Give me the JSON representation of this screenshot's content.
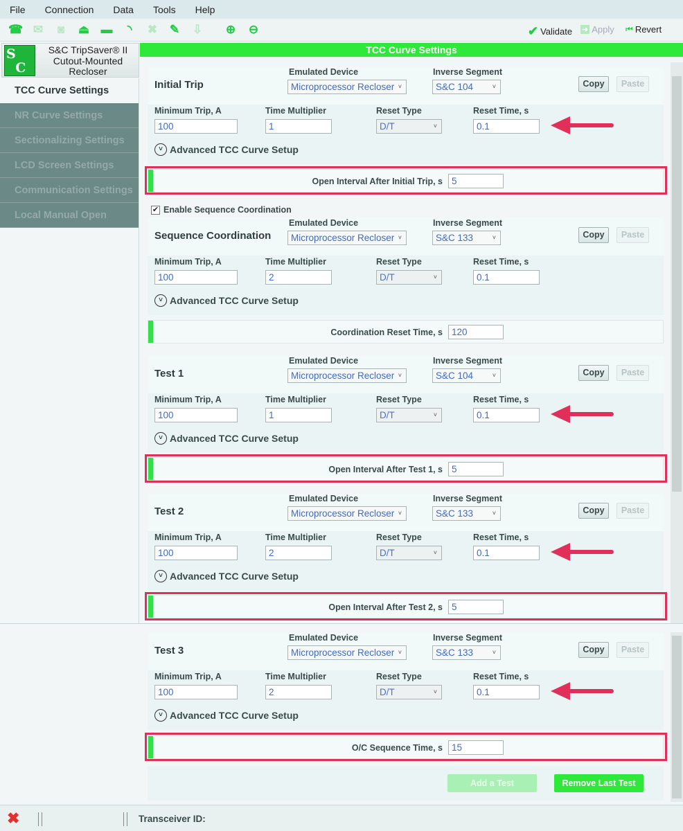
{
  "menu": [
    "File",
    "Connection",
    "Data",
    "Tools",
    "Help"
  ],
  "toolbar": {
    "icons": [
      {
        "name": "connect-icon",
        "glyph": "☎",
        "enabled": true
      },
      {
        "name": "email-icon",
        "glyph": "✉",
        "enabled": false
      },
      {
        "name": "camera-icon",
        "glyph": "◙",
        "enabled": false
      },
      {
        "name": "upload-icon",
        "glyph": "⏏",
        "enabled": true
      },
      {
        "name": "toolbox-icon",
        "glyph": "▬",
        "enabled": true
      },
      {
        "name": "rss-icon",
        "glyph": "◝",
        "enabled": true
      },
      {
        "name": "delete-icon",
        "glyph": "✖",
        "enabled": false
      },
      {
        "name": "clipboard-icon",
        "glyph": "✎",
        "enabled": true
      },
      {
        "name": "download-icon",
        "glyph": "⇩",
        "enabled": false
      },
      {
        "name": "zoom-in-icon",
        "glyph": "⊕",
        "enabled": true
      },
      {
        "name": "zoom-out-icon",
        "glyph": "⊖",
        "enabled": true
      }
    ],
    "validate": "Validate",
    "apply": "Apply",
    "revert": "Revert"
  },
  "logo": {
    "mark": "S&C",
    "line1": "S&C TripSaver® II",
    "line2": "Cutout-Mounted",
    "line3": "Recloser"
  },
  "sidebar": [
    "TCC Curve Settings",
    "NR Curve Settings",
    "Sectionalizing Settings",
    "LCD Screen Settings",
    "Communication Settings",
    "Local Manual Open"
  ],
  "header": "TCC Curve Settings",
  "labels": {
    "emulated": "Emulated Device",
    "inverse": "Inverse Segment",
    "min_trip": "Minimum Trip, A",
    "time_mult": "Time Multiplier",
    "reset_type": "Reset Type",
    "reset_time": "Reset Time, s",
    "advanced": "Advanced TCC Curve Setup",
    "copy": "Copy",
    "paste": "Paste"
  },
  "enable_sequence": {
    "label": "Enable Sequence Coordination",
    "checked": true
  },
  "sections": [
    {
      "title": "Initial Trip",
      "device": "Microprocessor Recloser",
      "inverse": "S&C 104",
      "min_trip": "100",
      "time_mult": "1",
      "reset_type": "D/T",
      "reset_time": "0.1",
      "bar_label": "Open Interval After Initial Trip, s",
      "bar_value": "5",
      "highlighted": true
    },
    {
      "title": "Sequence Coordination",
      "device": "Microprocessor Recloser",
      "inverse": "S&C 133",
      "min_trip": "100",
      "time_mult": "2",
      "reset_type": "D/T",
      "reset_time": "0.1",
      "bar_label": "Coordination Reset Time, s",
      "bar_value": "120",
      "highlighted": false
    },
    {
      "title": "Test 1",
      "device": "Microprocessor Recloser",
      "inverse": "S&C 104",
      "min_trip": "100",
      "time_mult": "1",
      "reset_type": "D/T",
      "reset_time": "0.1",
      "bar_label": "Open Interval After Test 1, s",
      "bar_value": "5",
      "highlighted": true
    },
    {
      "title": "Test 2",
      "device": "Microprocessor Recloser",
      "inverse": "S&C 133",
      "min_trip": "100",
      "time_mult": "2",
      "reset_type": "D/T",
      "reset_time": "0.1",
      "bar_label": "Open Interval After Test 2, s",
      "bar_value": "5",
      "highlighted": true
    },
    {
      "title": "Test 3",
      "device": "Microprocessor Recloser",
      "inverse": "S&C 133",
      "min_trip": "100",
      "time_mult": "2",
      "reset_type": "D/T",
      "reset_time": "0.1",
      "bar_label": "O/C Sequence Time, s",
      "bar_value": "15",
      "highlighted": true
    }
  ],
  "buttons": {
    "add_test": "Add a Test",
    "remove_test": "Remove Last Test"
  },
  "status": {
    "transceiver": "Transceiver ID:"
  },
  "colors": {
    "accent": "#2ee83a",
    "highlight": "#e0305a"
  }
}
